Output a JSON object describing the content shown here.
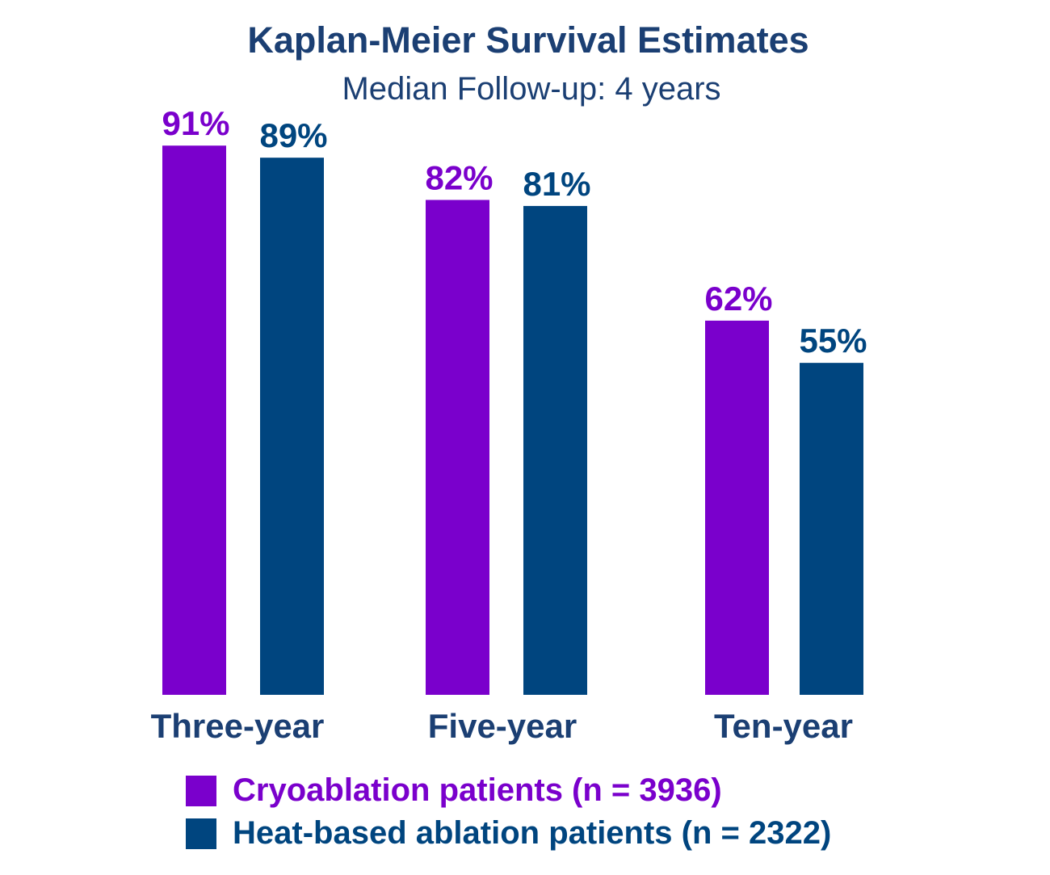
{
  "chart_data": {
    "type": "bar",
    "title": "Kaplan-Meier Survival Estimates",
    "subtitle": "Median Follow-up: 4 years",
    "categories": [
      "Three-year",
      "Five-year",
      "Ten-year"
    ],
    "series": [
      {
        "name": "Cryoablation patients (n = 3936)",
        "color": "#7A00CC",
        "values": [
          91,
          82,
          62
        ],
        "labels": [
          "91%",
          "82%",
          "62%"
        ]
      },
      {
        "name": "Heat-based ablation patients (n = 2322)",
        "color": "#00457F",
        "values": [
          89,
          81,
          55
        ],
        "labels": [
          "89%",
          "81%",
          "55%"
        ]
      }
    ],
    "ylim": [
      0,
      100
    ],
    "grid": false,
    "legend_position": "bottom",
    "xlabel": "",
    "ylabel": ""
  }
}
